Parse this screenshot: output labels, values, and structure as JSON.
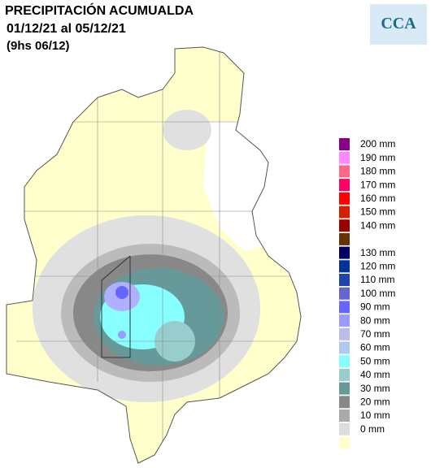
{
  "header": {
    "title": "PRECIPITACIÓN ACUMUALDA",
    "period": "01/12/21 al 05/12/21",
    "time": "(9hs 06/12)",
    "logo": "CCA"
  },
  "legend": {
    "entries": [
      {
        "label": "200 mm",
        "color": "#8b008b"
      },
      {
        "label": "190 mm",
        "color": "#ff88ff"
      },
      {
        "label": "180 mm",
        "color": "#ff6688"
      },
      {
        "label": "170 mm",
        "color": "#ff0066"
      },
      {
        "label": "160 mm",
        "color": "#ff0000"
      },
      {
        "label": "150 mm",
        "color": "#d42000"
      },
      {
        "label": "140 mm",
        "color": "#990000"
      },
      {
        "label": null,
        "color": "#663300"
      },
      {
        "label": "130 mm",
        "color": "#000066"
      },
      {
        "label": "120 mm",
        "color": "#003399"
      },
      {
        "label": "110 mm",
        "color": "#2244aa"
      },
      {
        "label": "100 mm",
        "color": "#6666cc"
      },
      {
        "label": "90 mm",
        "color": "#6666ff"
      },
      {
        "label": "80 mm",
        "color": "#9999ff"
      },
      {
        "label": "70 mm",
        "color": "#bbbbee"
      },
      {
        "label": "60 mm",
        "color": "#b0c8f0"
      },
      {
        "label": "50 mm",
        "color": "#88ffff"
      },
      {
        "label": "40 mm",
        "color": "#99cccc"
      },
      {
        "label": "30 mm",
        "color": "#669999"
      },
      {
        "label": "20 mm",
        "color": "#888888"
      },
      {
        "label": "10 mm",
        "color": "#aaaaaa"
      },
      {
        "label": "0 mm",
        "color": "#dddddd"
      },
      {
        "label": null,
        "color": "#ffffcc"
      }
    ]
  }
}
